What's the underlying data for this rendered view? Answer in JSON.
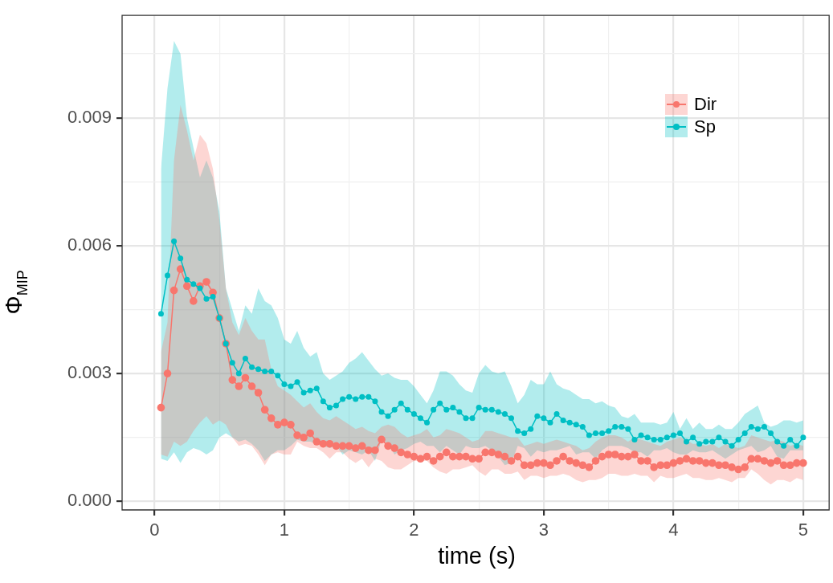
{
  "chart_data": {
    "type": "line",
    "xlabel": "time (s)",
    "ylabel": "Φ$_{MIP}$",
    "x": [
      0.05,
      0.1,
      0.15,
      0.2,
      0.25,
      0.3,
      0.35,
      0.4,
      0.45,
      0.5,
      0.55,
      0.6,
      0.65,
      0.7,
      0.75,
      0.8,
      0.85,
      0.9,
      0.95,
      1,
      1.05,
      1.1,
      1.15,
      1.2,
      1.25,
      1.3,
      1.35,
      1.4,
      1.45,
      1.5,
      1.55,
      1.6,
      1.65,
      1.7,
      1.75,
      1.8,
      1.85,
      1.9,
      1.95,
      2,
      2.05,
      2.1,
      2.15,
      2.2,
      2.25,
      2.3,
      2.35,
      2.4,
      2.45,
      2.5,
      2.55,
      2.6,
      2.65,
      2.7,
      2.75,
      2.8,
      2.85,
      2.9,
      2.95,
      3,
      3.05,
      3.1,
      3.15,
      3.2,
      3.25,
      3.3,
      3.35,
      3.4,
      3.45,
      3.5,
      3.55,
      3.6,
      3.65,
      3.7,
      3.75,
      3.8,
      3.85,
      3.9,
      3.95,
      4,
      4.05,
      4.1,
      4.15,
      4.2,
      4.25,
      4.3,
      4.35,
      4.4,
      4.45,
      4.5,
      4.55,
      4.6,
      4.65,
      4.7,
      4.75,
      4.8,
      4.85,
      4.9,
      4.95,
      5
    ],
    "series": [
      {
        "name": "Dir",
        "color": "#f8766d",
        "values": [
          0.0022,
          0.003,
          0.00495,
          0.00545,
          0.00505,
          0.0047,
          0.00505,
          0.00515,
          0.0049,
          0.0043,
          0.0037,
          0.00285,
          0.0027,
          0.0029,
          0.0027,
          0.00255,
          0.00215,
          0.00195,
          0.0018,
          0.00185,
          0.0018,
          0.00155,
          0.0015,
          0.0016,
          0.0014,
          0.00135,
          0.00135,
          0.0013,
          0.0013,
          0.0013,
          0.00125,
          0.0013,
          0.0012,
          0.0012,
          0.00145,
          0.0013,
          0.00125,
          0.00115,
          0.0011,
          0.00105,
          0.001,
          0.00105,
          0.00095,
          0.00105,
          0.00115,
          0.00105,
          0.00105,
          0.00105,
          0.001,
          0.001,
          0.00115,
          0.00115,
          0.0011,
          0.00105,
          0.00095,
          0.00105,
          0.00085,
          0.00085,
          0.0009,
          0.0009,
          0.00085,
          0.00095,
          0.00105,
          0.00095,
          0.0009,
          0.00085,
          0.0008,
          0.00095,
          0.00105,
          0.0011,
          0.0011,
          0.00105,
          0.00105,
          0.0011,
          0.00095,
          0.00095,
          0.0008,
          0.00085,
          0.00085,
          0.0009,
          0.00095,
          0.001,
          0.00095,
          0.00095,
          0.0009,
          0.0009,
          0.00085,
          0.00085,
          0.0008,
          0.00075,
          0.0008,
          0.001,
          0.001,
          0.00095,
          0.0009,
          0.00095,
          0.00085,
          0.00085,
          0.0009,
          0.0009
        ],
        "upper": [
          0.0035,
          0.0042,
          0.008,
          0.0093,
          0.0087,
          0.008,
          0.0086,
          0.0084,
          0.0078,
          0.0066,
          0.005,
          0.0042,
          0.0039,
          0.0043,
          0.004,
          0.0038,
          0.0038,
          0.0031,
          0.0027,
          0.0026,
          0.0025,
          0.00235,
          0.0022,
          0.0023,
          0.0021,
          0.00195,
          0.0019,
          0.002,
          0.0019,
          0.0018,
          0.0017,
          0.00175,
          0.00165,
          0.0016,
          0.00175,
          0.0018,
          0.00175,
          0.0016,
          0.0015,
          0.00155,
          0.0016,
          0.0017,
          0.0015,
          0.00155,
          0.0017,
          0.00165,
          0.0016,
          0.0015,
          0.0014,
          0.00145,
          0.00165,
          0.00165,
          0.0016,
          0.00155,
          0.0015,
          0.0015,
          0.0013,
          0.00135,
          0.0014,
          0.00135,
          0.0014,
          0.00145,
          0.0014,
          0.00135,
          0.0013,
          0.0012,
          0.00125,
          0.0014,
          0.0015,
          0.00155,
          0.00155,
          0.0015,
          0.0014,
          0.0015,
          0.00145,
          0.0014,
          0.00135,
          0.0013,
          0.0014,
          0.00145,
          0.0015,
          0.00145,
          0.00135,
          0.00135,
          0.0013,
          0.00135,
          0.00125,
          0.00135,
          0.0013,
          0.00125,
          0.0013,
          0.00155,
          0.0015,
          0.00145,
          0.0014,
          0.00145,
          0.0014,
          0.0013,
          0.00135,
          0.0013
        ],
        "lower": [
          0.0011,
          0.00105,
          0.0014,
          0.0013,
          0.0014,
          0.00165,
          0.00185,
          0.002,
          0.0018,
          0.0019,
          0.0018,
          0.0015,
          0.0013,
          0.00135,
          0.0013,
          0.0011,
          0.00085,
          0.0011,
          0.00115,
          0.0011,
          0.0011,
          0.0014,
          0.0013,
          0.00125,
          0.00125,
          0.00115,
          0.001,
          0.00115,
          0.00115,
          0.001,
          0.0009,
          0.001,
          0.0008,
          0.001,
          0.00095,
          0.0008,
          0.00075,
          0.00075,
          0.00085,
          0.00095,
          0.00095,
          0.00095,
          0.0008,
          0.0007,
          0.00065,
          0.00075,
          0.00075,
          0.0008,
          0.00085,
          0.0007,
          0.0006,
          0.00075,
          0.00075,
          0.00065,
          0.00065,
          0.0007,
          0.0005,
          0.0006,
          0.0006,
          0.00055,
          0.0006,
          0.0006,
          0.00065,
          0.0006,
          0.0005,
          0.00045,
          0.0005,
          0.0005,
          0.00055,
          0.00065,
          0.00065,
          0.0006,
          0.0006,
          0.00065,
          0.0006,
          0.0006,
          0.00045,
          0.0006,
          0.00055,
          0.00055,
          0.0006,
          0.00065,
          0.00055,
          0.00055,
          0.0005,
          0.0005,
          0.00055,
          0.0005,
          0.00045,
          0.00055,
          0.00055,
          0.00075,
          0.00065,
          0.0005,
          0.0004,
          0.0005,
          0.0005,
          0.00045,
          0.00055,
          0.0005
        ]
      },
      {
        "name": "Sp",
        "color": "#00bfc4",
        "values": [
          0.0044,
          0.0053,
          0.0061,
          0.0057,
          0.0052,
          0.0051,
          0.005,
          0.00475,
          0.0048,
          0.0043,
          0.0037,
          0.00325,
          0.003,
          0.00335,
          0.00315,
          0.0031,
          0.00305,
          0.00305,
          0.00295,
          0.00275,
          0.0027,
          0.0028,
          0.00255,
          0.0026,
          0.00265,
          0.00235,
          0.0022,
          0.00225,
          0.0024,
          0.00245,
          0.0024,
          0.00245,
          0.00245,
          0.00235,
          0.0021,
          0.002,
          0.00215,
          0.0023,
          0.00215,
          0.00205,
          0.00195,
          0.00185,
          0.00215,
          0.0023,
          0.00215,
          0.0022,
          0.0021,
          0.00195,
          0.00195,
          0.0022,
          0.00215,
          0.00215,
          0.0021,
          0.00205,
          0.00195,
          0.00165,
          0.0016,
          0.0017,
          0.002,
          0.00195,
          0.00185,
          0.00205,
          0.0019,
          0.00185,
          0.0018,
          0.00175,
          0.00155,
          0.0016,
          0.0016,
          0.00165,
          0.00175,
          0.00175,
          0.0017,
          0.00145,
          0.00155,
          0.0015,
          0.00145,
          0.00145,
          0.0015,
          0.00155,
          0.0016,
          0.0014,
          0.0015,
          0.00135,
          0.0014,
          0.0014,
          0.0015,
          0.0014,
          0.0013,
          0.00145,
          0.0016,
          0.00175,
          0.0017,
          0.00175,
          0.0016,
          0.0014,
          0.0013,
          0.00145,
          0.0013,
          0.0015
        ],
        "upper": [
          0.0078,
          0.0097,
          0.0108,
          0.0105,
          0.009,
          0.0083,
          0.0076,
          0.008,
          0.0076,
          0.0068,
          0.005,
          0.0045,
          0.004,
          0.0046,
          0.0044,
          0.005,
          0.0047,
          0.0046,
          0.0043,
          0.0038,
          0.0037,
          0.004,
          0.0036,
          0.0034,
          0.0035,
          0.003,
          0.00285,
          0.00295,
          0.00305,
          0.00325,
          0.00335,
          0.0035,
          0.0033,
          0.0031,
          0.00295,
          0.003,
          0.0029,
          0.00285,
          0.00285,
          0.0027,
          0.0025,
          0.0023,
          0.0026,
          0.00305,
          0.00305,
          0.00295,
          0.00275,
          0.0026,
          0.00255,
          0.003,
          0.0032,
          0.00305,
          0.003,
          0.00305,
          0.0027,
          0.0023,
          0.0025,
          0.00285,
          0.00275,
          0.00275,
          0.00305,
          0.00275,
          0.00265,
          0.0026,
          0.0025,
          0.0024,
          0.0024,
          0.0023,
          0.00235,
          0.00225,
          0.0022,
          0.002,
          0.00195,
          0.00205,
          0.00185,
          0.00185,
          0.00185,
          0.0018,
          0.00185,
          0.0021,
          0.0017,
          0.00195,
          0.0017,
          0.00185,
          0.0017,
          0.0017,
          0.0018,
          0.0017,
          0.0017,
          0.00185,
          0.00205,
          0.00215,
          0.00225,
          0.00185,
          0.00175,
          0.0018,
          0.0019,
          0.0019,
          0.00185,
          0.0019
        ],
        "lower": [
          0.001,
          0.00095,
          0.00115,
          0.0009,
          0.00115,
          0.00125,
          0.0012,
          0.0011,
          0.0012,
          0.0015,
          0.0016,
          0.0015,
          0.0014,
          0.00145,
          0.00135,
          0.0012,
          0.00095,
          0.0011,
          0.0012,
          0.0012,
          0.0013,
          0.00145,
          0.0014,
          0.0014,
          0.00135,
          0.0013,
          0.00125,
          0.0013,
          0.0011,
          0.0012,
          0.00115,
          0.0011,
          0.0012,
          0.00095,
          0.00145,
          0.00135,
          0.0011,
          0.0012,
          0.00125,
          0.00135,
          0.0014,
          0.0013,
          0.0013,
          0.00115,
          0.0013,
          0.0012,
          0.0011,
          0.0013,
          0.00125,
          0.00125,
          0.0013,
          0.0012,
          0.00105,
          0.00085,
          0.0009,
          0.0013,
          0.00125,
          0.00105,
          0.0012,
          0.00115,
          0.0012,
          0.0012,
          0.00125,
          0.0013,
          0.0011,
          0.00115,
          0.00115,
          0.001,
          0.0012,
          0.0013,
          0.0013,
          0.0013,
          0.00125,
          0.00115,
          0.00115,
          0.00105,
          0.0012,
          0.0012,
          0.00125,
          0.00115,
          0.0011,
          0.0011,
          0.0012,
          0.00115,
          0.00115,
          0.0012,
          0.0011,
          0.001,
          0.0011,
          0.0012,
          0.00125,
          0.0013,
          0.00115,
          0.0012,
          0.0013,
          0.00105,
          0.001,
          0.0012,
          0.0012,
          0.0012
        ]
      }
    ],
    "xlim": [
      -0.25,
      5.2
    ],
    "xticks": [
      0,
      {
        "value": 0.5,
        "label": null
      },
      1,
      {
        "value": 1.5,
        "label": null
      },
      2,
      {
        "value": 2.5,
        "label": null
      },
      3,
      {
        "value": 3.5,
        "label": null
      },
      4,
      {
        "value": 4.5,
        "label": null
      },
      5
    ],
    "ylim": [
      -0.0002,
      0.0114
    ],
    "yticks": [
      {
        "value": 0,
        "label": "0.000"
      },
      {
        "value": 0.0015,
        "label": null
      },
      {
        "value": 0.003,
        "label": "0.003"
      },
      {
        "value": 0.0045,
        "label": null
      },
      {
        "value": 0.006,
        "label": "0.006"
      },
      {
        "value": 0.0075,
        "label": null
      },
      {
        "value": 0.009,
        "label": "0.009"
      },
      {
        "value": 0.0105,
        "label": null
      }
    ],
    "grid": true,
    "legend": "top right",
    "marker": "circle",
    "line_style": "solid"
  }
}
